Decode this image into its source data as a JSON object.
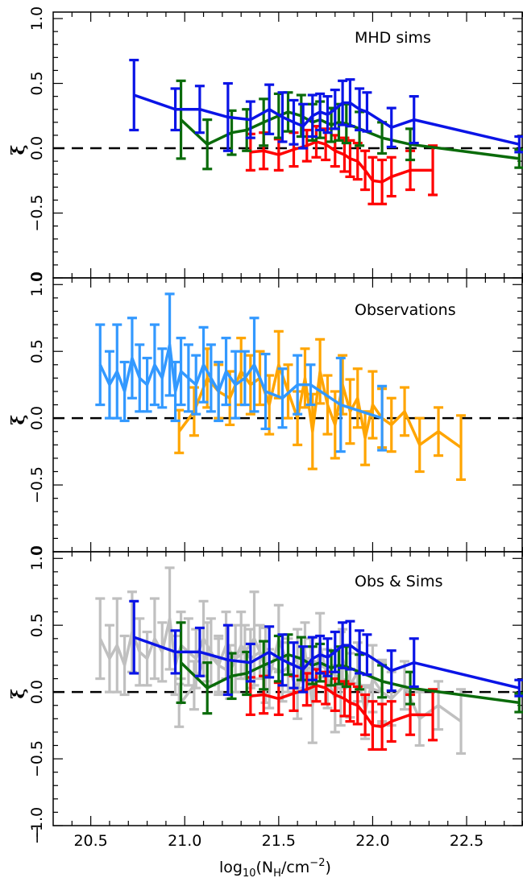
{
  "figure": {
    "xlabel_main": "log",
    "xlabel_sub": "10",
    "xlabel_paren_open": "(N",
    "xlabel_nsub": "H",
    "xlabel_unit": "/cm",
    "xlabel_exp": "−2",
    "xlabel_close": ")",
    "ylabel": "ξ"
  },
  "chart_data": [
    {
      "type": "line",
      "panel": "top",
      "annotation": "MHD sims",
      "xlim": [
        20.3,
        22.8
      ],
      "ylim": [
        0.0,
        1.0
      ],
      "ytick_values": [
        0.0,
        0.5,
        1.0
      ],
      "ytick_labels": [
        "0.0",
        "0.5",
        "1.0"
      ],
      "xtick_values": [
        20.5,
        21.0,
        21.5,
        22.0,
        22.5
      ],
      "reference_line": 0.0,
      "series": [
        {
          "color": "#ff0000",
          "x": [
            21.35,
            21.42,
            21.5,
            21.58,
            21.65,
            21.7,
            21.75,
            21.8,
            21.85,
            21.88,
            21.92,
            21.96,
            22.0,
            22.05,
            22.1,
            22.2,
            22.32
          ],
          "y": [
            -0.03,
            -0.02,
            -0.05,
            -0.01,
            0.02,
            0.05,
            0.03,
            -0.02,
            -0.05,
            -0.08,
            -0.1,
            -0.17,
            -0.25,
            -0.26,
            -0.22,
            -0.17,
            -0.17
          ],
          "err": [
            0.14,
            0.14,
            0.12,
            0.13,
            0.12,
            0.12,
            0.12,
            0.12,
            0.13,
            0.14,
            0.14,
            0.15,
            0.18,
            0.17,
            0.15,
            0.15,
            0.19
          ]
        },
        {
          "color": "#0a6b0a",
          "x": [
            20.98,
            21.12,
            21.25,
            21.33,
            21.42,
            21.5,
            21.55,
            21.62,
            21.68,
            21.72,
            21.78,
            21.82,
            21.86,
            21.93,
            22.05,
            22.2,
            22.78
          ],
          "y": [
            0.22,
            0.03,
            0.12,
            0.14,
            0.2,
            0.25,
            0.28,
            0.25,
            0.2,
            0.22,
            0.18,
            0.2,
            0.19,
            0.15,
            0.08,
            0.03,
            -0.08
          ],
          "err": [
            0.3,
            0.19,
            0.17,
            0.16,
            0.18,
            0.17,
            0.15,
            0.16,
            0.14,
            0.14,
            0.13,
            0.14,
            0.15,
            0.13,
            0.12,
            0.12,
            0.07
          ]
        },
        {
          "color": "#0a14e6",
          "x": [
            20.73,
            20.95,
            21.08,
            21.23,
            21.35,
            21.45,
            21.52,
            21.58,
            21.63,
            21.68,
            21.72,
            21.76,
            21.8,
            21.84,
            21.88,
            21.93,
            21.97,
            22.1,
            22.22,
            22.78
          ],
          "y": [
            0.41,
            0.3,
            0.3,
            0.24,
            0.22,
            0.3,
            0.24,
            0.2,
            0.17,
            0.25,
            0.28,
            0.26,
            0.3,
            0.35,
            0.35,
            0.3,
            0.28,
            0.16,
            0.22,
            0.03
          ],
          "err": [
            0.27,
            0.16,
            0.18,
            0.26,
            0.14,
            0.19,
            0.19,
            0.17,
            0.17,
            0.16,
            0.14,
            0.14,
            0.15,
            0.17,
            0.18,
            0.16,
            0.15,
            0.15,
            0.18,
            0.06
          ]
        }
      ]
    },
    {
      "type": "line",
      "panel": "middle",
      "annotation": "Observations",
      "xlim": [
        20.3,
        22.8
      ],
      "ylim": [
        0.0,
        1.0
      ],
      "ytick_values": [
        0.0,
        0.5,
        1.0
      ],
      "ytick_labels": [
        "0.0",
        "0.5",
        "1.0"
      ],
      "xtick_values": [
        20.5,
        21.0,
        21.5,
        22.0,
        22.5
      ],
      "reference_line": 0.0,
      "series": [
        {
          "color": "#ffa500",
          "x": [
            20.97,
            21.05,
            21.12,
            21.18,
            21.24,
            21.3,
            21.35,
            21.4,
            21.45,
            21.5,
            21.55,
            21.6,
            21.64,
            21.68,
            21.72,
            21.76,
            21.8,
            21.84,
            21.88,
            21.92,
            21.96,
            22.0,
            22.05,
            22.1,
            22.17,
            22.25,
            22.35,
            22.47
          ],
          "y": [
            -0.1,
            0.05,
            0.3,
            0.2,
            0.15,
            0.35,
            0.25,
            0.3,
            0.1,
            0.4,
            0.2,
            0.0,
            0.3,
            -0.1,
            0.35,
            0.1,
            -0.05,
            0.25,
            0.05,
            0.15,
            -0.15,
            0.1,
            0.0,
            -0.05,
            0.05,
            -0.2,
            -0.1,
            -0.22
          ],
          "err": [
            0.16,
            0.18,
            0.22,
            0.2,
            0.2,
            0.25,
            0.22,
            0.2,
            0.22,
            0.25,
            0.2,
            0.2,
            0.22,
            0.28,
            0.24,
            0.22,
            0.25,
            0.22,
            0.24,
            0.22,
            0.2,
            0.25,
            0.22,
            0.2,
            0.18,
            0.2,
            0.18,
            0.24
          ]
        },
        {
          "color": "#3399ff",
          "x": [
            20.55,
            20.6,
            20.64,
            20.68,
            20.72,
            20.76,
            20.8,
            20.84,
            20.88,
            20.92,
            20.95,
            20.98,
            21.02,
            21.06,
            21.1,
            21.14,
            21.18,
            21.22,
            21.27,
            21.32,
            21.37,
            21.43,
            21.52,
            21.6,
            21.67,
            21.83,
            22.05
          ],
          "y": [
            0.4,
            0.25,
            0.35,
            0.2,
            0.45,
            0.3,
            0.25,
            0.4,
            0.3,
            0.55,
            0.2,
            0.35,
            0.3,
            0.25,
            0.4,
            0.3,
            0.2,
            0.35,
            0.25,
            0.3,
            0.4,
            0.2,
            0.15,
            0.25,
            0.25,
            0.1,
            0.0
          ],
          "err": [
            0.3,
            0.25,
            0.35,
            0.22,
            0.3,
            0.25,
            0.2,
            0.3,
            0.22,
            0.38,
            0.22,
            0.25,
            0.25,
            0.22,
            0.28,
            0.25,
            0.22,
            0.25,
            0.25,
            0.2,
            0.35,
            0.28,
            0.22,
            0.22,
            0.15,
            0.35,
            0.24
          ]
        }
      ]
    },
    {
      "type": "line",
      "panel": "bottom",
      "annotation": "Obs & Sims",
      "xlim": [
        20.3,
        22.8
      ],
      "ylim": [
        -1.0,
        1.0
      ],
      "ytick_values": [
        -1.0,
        -0.5,
        0.0,
        0.5,
        1.0
      ],
      "ytick_labels": [
        "−1.0",
        "−0.5",
        "0.0",
        "0.5",
        "1.0"
      ],
      "xtick_values": [
        20.5,
        21.0,
        21.5,
        22.0,
        22.5
      ],
      "xtick_labels": [
        "20.5",
        "21.0",
        "21.5",
        "22.0",
        "22.5"
      ],
      "reference_line": 0.0,
      "series": [
        {
          "color": "#c0c0c0",
          "x": [
            20.55,
            20.6,
            20.64,
            20.68,
            20.72,
            20.76,
            20.8,
            20.84,
            20.88,
            20.92,
            20.95,
            20.98,
            21.02,
            21.06,
            21.1,
            21.14,
            21.18,
            21.22,
            21.27,
            21.32,
            21.37,
            21.43,
            21.52,
            21.6,
            21.67,
            21.83,
            22.05
          ],
          "y": [
            0.4,
            0.25,
            0.35,
            0.2,
            0.45,
            0.3,
            0.25,
            0.4,
            0.3,
            0.55,
            0.2,
            0.35,
            0.3,
            0.25,
            0.4,
            0.3,
            0.2,
            0.35,
            0.25,
            0.3,
            0.4,
            0.2,
            0.15,
            0.25,
            0.25,
            0.1,
            0.0
          ],
          "err": [
            0.3,
            0.25,
            0.35,
            0.22,
            0.3,
            0.25,
            0.2,
            0.3,
            0.22,
            0.38,
            0.22,
            0.25,
            0.25,
            0.22,
            0.28,
            0.25,
            0.22,
            0.25,
            0.25,
            0.2,
            0.35,
            0.28,
            0.22,
            0.22,
            0.15,
            0.35,
            0.24
          ]
        },
        {
          "color": "#c0c0c0",
          "x": [
            20.97,
            21.05,
            21.12,
            21.18,
            21.24,
            21.3,
            21.35,
            21.4,
            21.45,
            21.5,
            21.55,
            21.6,
            21.64,
            21.68,
            21.72,
            21.76,
            21.8,
            21.84,
            21.88,
            21.92,
            21.96,
            22.0,
            22.05,
            22.1,
            22.17,
            22.25,
            22.35,
            22.47
          ],
          "y": [
            -0.1,
            0.05,
            0.3,
            0.2,
            0.15,
            0.35,
            0.25,
            0.3,
            0.1,
            0.4,
            0.2,
            0.0,
            0.3,
            -0.1,
            0.35,
            0.1,
            -0.05,
            0.25,
            0.05,
            0.15,
            -0.15,
            0.1,
            0.0,
            -0.05,
            0.05,
            -0.2,
            -0.1,
            -0.22
          ],
          "err": [
            0.16,
            0.18,
            0.22,
            0.2,
            0.2,
            0.25,
            0.22,
            0.2,
            0.22,
            0.25,
            0.2,
            0.2,
            0.22,
            0.28,
            0.24,
            0.22,
            0.25,
            0.22,
            0.24,
            0.22,
            0.2,
            0.25,
            0.22,
            0.2,
            0.18,
            0.2,
            0.18,
            0.24
          ]
        },
        {
          "color": "#ff0000",
          "x": [
            21.35,
            21.42,
            21.5,
            21.58,
            21.65,
            21.7,
            21.75,
            21.8,
            21.85,
            21.88,
            21.92,
            21.96,
            22.0,
            22.05,
            22.1,
            22.2,
            22.32
          ],
          "y": [
            -0.03,
            -0.02,
            -0.05,
            -0.01,
            0.02,
            0.05,
            0.03,
            -0.02,
            -0.05,
            -0.08,
            -0.1,
            -0.17,
            -0.25,
            -0.26,
            -0.22,
            -0.17,
            -0.17
          ],
          "err": [
            0.14,
            0.14,
            0.12,
            0.13,
            0.12,
            0.12,
            0.12,
            0.12,
            0.13,
            0.14,
            0.14,
            0.15,
            0.18,
            0.17,
            0.15,
            0.15,
            0.19
          ]
        },
        {
          "color": "#0a6b0a",
          "x": [
            20.98,
            21.12,
            21.25,
            21.33,
            21.42,
            21.5,
            21.55,
            21.62,
            21.68,
            21.72,
            21.78,
            21.82,
            21.86,
            21.93,
            22.05,
            22.2,
            22.78
          ],
          "y": [
            0.22,
            0.03,
            0.12,
            0.14,
            0.2,
            0.25,
            0.28,
            0.25,
            0.2,
            0.22,
            0.18,
            0.2,
            0.19,
            0.15,
            0.08,
            0.03,
            -0.08
          ],
          "err": [
            0.3,
            0.19,
            0.17,
            0.16,
            0.18,
            0.17,
            0.15,
            0.16,
            0.14,
            0.14,
            0.13,
            0.14,
            0.15,
            0.13,
            0.12,
            0.12,
            0.07
          ]
        },
        {
          "color": "#0a14e6",
          "x": [
            20.73,
            20.95,
            21.08,
            21.23,
            21.35,
            21.45,
            21.52,
            21.58,
            21.63,
            21.68,
            21.72,
            21.76,
            21.8,
            21.84,
            21.88,
            21.93,
            21.97,
            22.1,
            22.22,
            22.78
          ],
          "y": [
            0.41,
            0.3,
            0.3,
            0.24,
            0.22,
            0.3,
            0.24,
            0.2,
            0.17,
            0.25,
            0.28,
            0.26,
            0.3,
            0.35,
            0.35,
            0.3,
            0.28,
            0.16,
            0.22,
            0.03
          ],
          "err": [
            0.27,
            0.16,
            0.18,
            0.26,
            0.14,
            0.19,
            0.19,
            0.17,
            0.17,
            0.16,
            0.14,
            0.14,
            0.15,
            0.17,
            0.18,
            0.16,
            0.15,
            0.15,
            0.18,
            0.06
          ]
        }
      ]
    }
  ]
}
